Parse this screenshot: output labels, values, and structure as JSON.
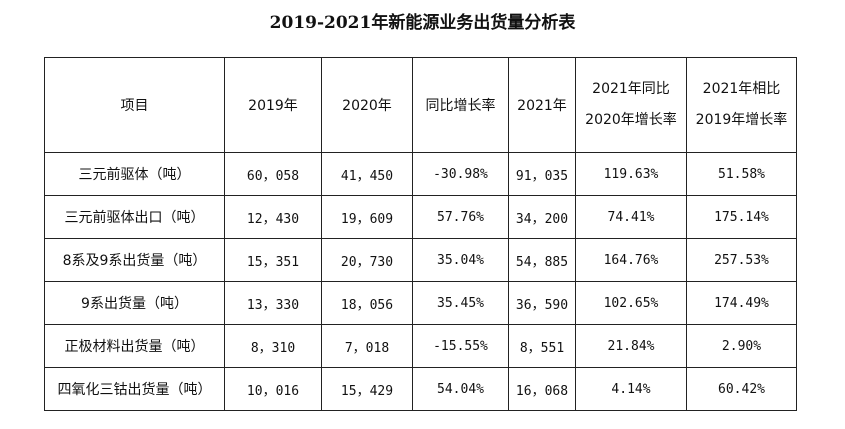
{
  "title": "2019-2021年新能源业务出货量分析表",
  "headers": {
    "item": "项目",
    "y2019": "2019年",
    "y2020": "2020年",
    "yoy": "同比增长率",
    "y2021": "2021年",
    "vs2020_line1": "2021年同比",
    "vs2020_line2": "2020年增长率",
    "vs2019_line1": "2021年相比",
    "vs2019_line2": "2019年增长率"
  },
  "rows": [
    {
      "item": "三元前驱体（吨）",
      "y2019": "60，058",
      "y2020": "41，450",
      "yoy": "-30.98%",
      "y2021": "91，035",
      "vs2020": "119.63%",
      "vs2019": "51.58%"
    },
    {
      "item": "三元前驱体出口（吨）",
      "y2019": "12，430",
      "y2020": "19，609",
      "yoy": "57.76%",
      "y2021": "34，200",
      "vs2020": "74.41%",
      "vs2019": "175.14%"
    },
    {
      "item": "8系及9系出货量（吨）",
      "y2019": "15，351",
      "y2020": "20，730",
      "yoy": "35.04%",
      "y2021": "54，885",
      "vs2020": "164.76%",
      "vs2019": "257.53%"
    },
    {
      "item": "9系出货量（吨）",
      "y2019": "13，330",
      "y2020": "18，056",
      "yoy": "35.45%",
      "y2021": "36，590",
      "vs2020": "102.65%",
      "vs2019": "174.49%"
    },
    {
      "item": "正极材料出货量（吨）",
      "y2019": "8，310",
      "y2020": "7，018",
      "yoy": "-15.55%",
      "y2021": "8，551",
      "vs2020": "21.84%",
      "vs2019": "2.90%"
    },
    {
      "item": "四氧化三钴出货量（吨）",
      "y2019": "10，016",
      "y2020": "15，429",
      "yoy": "54.04%",
      "y2021": "16，068",
      "vs2020": "4.14%",
      "vs2019": "60.42%"
    }
  ]
}
